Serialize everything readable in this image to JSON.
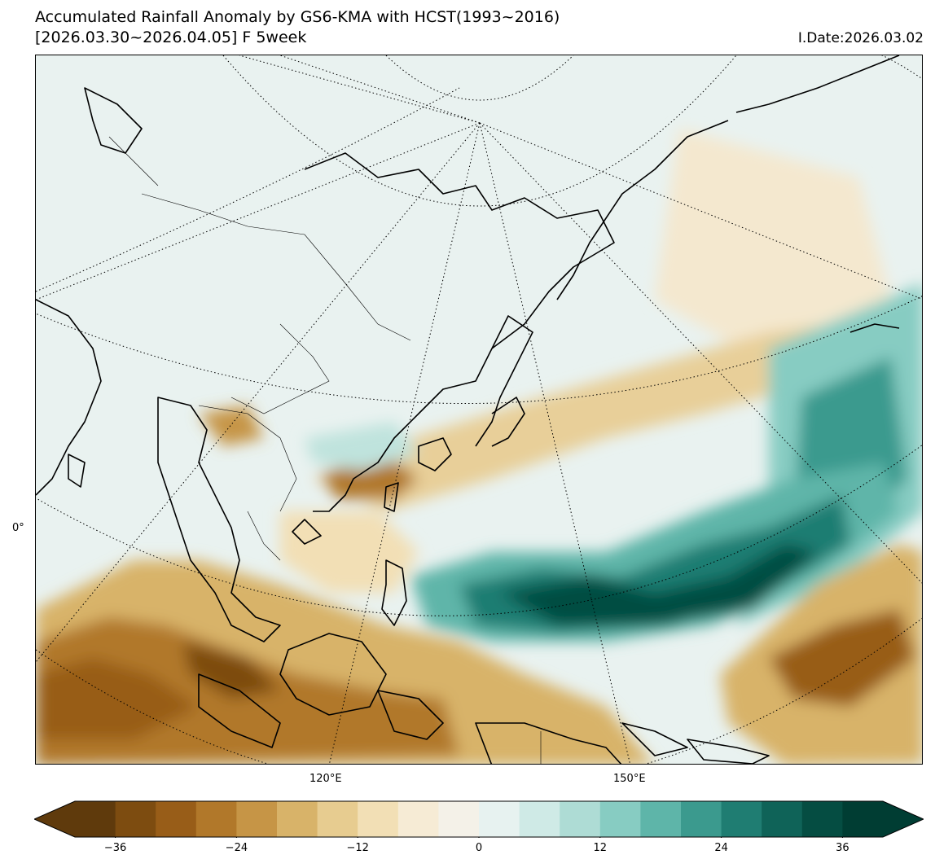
{
  "header": {
    "title": "Accumulated Rainfall Anomaly by GS6-KMA with HCST(1993~2016)",
    "subtitle": "[2026.03.30~2026.04.05] F 5week",
    "init_date": "I.Date:2026.03.02"
  },
  "map": {
    "projection": "polar-stereographic",
    "region": "East Asia / Western Pacific",
    "lat_labels": [
      {
        "text": "0°"
      }
    ],
    "lon_labels": [
      {
        "text": "120°E"
      },
      {
        "text": "150°E"
      }
    ]
  },
  "colorbar": {
    "min": -40,
    "max": 40,
    "extend": "both",
    "ticks": [
      {
        "value": -36,
        "text": "−36"
      },
      {
        "value": -24,
        "text": "−24"
      },
      {
        "value": -12,
        "text": "−12"
      },
      {
        "value": 0,
        "text": "0"
      },
      {
        "value": 12,
        "text": "12"
      },
      {
        "value": 24,
        "text": "24"
      },
      {
        "value": 36,
        "text": "36"
      }
    ],
    "colors": [
      "#5f3a0c",
      "#7d4c10",
      "#985d18",
      "#b1782a",
      "#c69546",
      "#d8b369",
      "#e7cc90",
      "#f2dfb5",
      "#f6ebd5",
      "#f4f1e8",
      "#e7f2f0",
      "#cfeae6",
      "#aedcd5",
      "#87ccc2",
      "#5eb5a9",
      "#3b9a8e",
      "#1f7d72",
      "#0f6358",
      "#054d42",
      "#003d33"
    ]
  },
  "colors": {
    "dry_extreme": "#5f3a0c",
    "wet_extreme": "#003d33",
    "neutral": "#e9f2f0"
  }
}
